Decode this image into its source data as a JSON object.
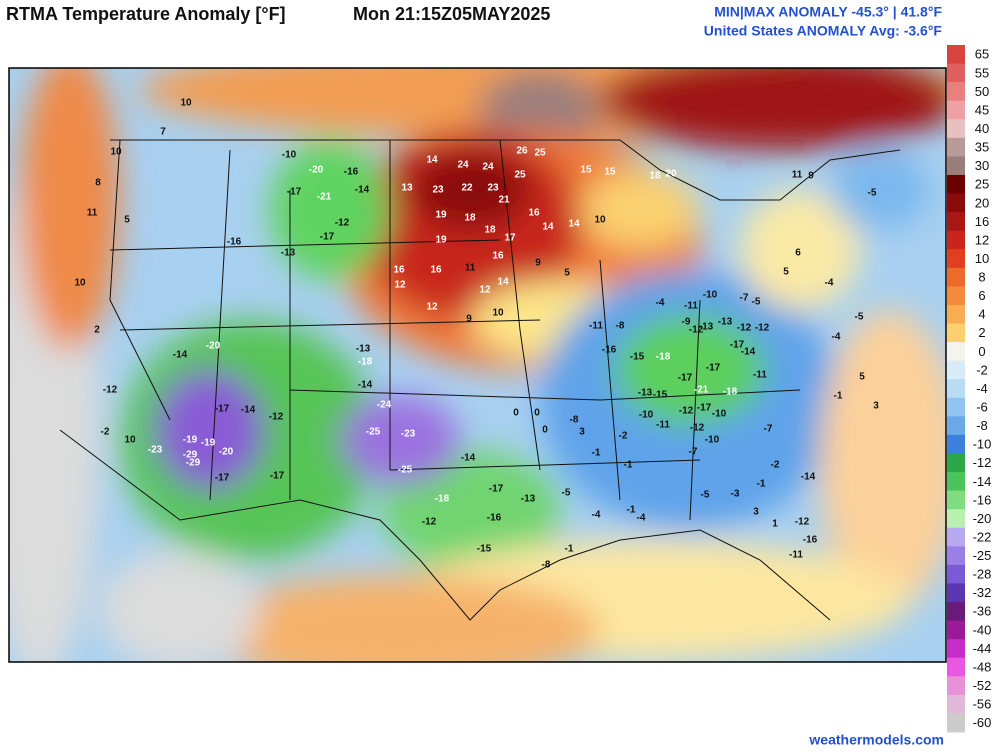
{
  "header": {
    "title": "RTMA Temperature Anomaly [°F]",
    "valid": "Mon 21:15Z05MAY2025",
    "minmax": "MIN|MAX ANOMALY -45.3° | 41.8°F",
    "average": "United States ANOMALY Avg: -3.6°F"
  },
  "stations": [
    10,
    7,
    10,
    8,
    11,
    5,
    10,
    2,
    -12,
    -2,
    10,
    -23,
    -19,
    -29,
    14,
    24,
    24,
    26,
    25,
    25,
    13,
    23,
    22,
    23,
    21,
    19,
    18,
    18,
    17,
    16,
    14,
    14,
    10,
    19,
    16,
    16,
    16,
    11,
    14,
    12,
    12,
    12,
    9,
    10,
    9,
    5,
    15,
    15,
    18,
    20,
    -10,
    -20,
    -16,
    -14,
    -17,
    -21,
    -16,
    -13,
    -17,
    -12,
    -20,
    -14,
    -17,
    -14,
    -12,
    -19,
    -20,
    -29,
    -17,
    -17,
    -13,
    -18,
    -25,
    -23,
    -24,
    -25,
    -14,
    -18,
    -17,
    -16,
    -12,
    -15,
    -13,
    -14,
    -16,
    -15,
    -18,
    -17,
    -21,
    -17,
    -18,
    -17,
    -14,
    -11,
    -13,
    -15,
    -10,
    -12,
    -17,
    -10,
    -9,
    -12,
    -13,
    -13,
    -12,
    -12,
    -10,
    -4,
    -11,
    -8,
    -11,
    -7,
    -5,
    -8,
    -2,
    -10,
    -11,
    -12,
    -7,
    -1,
    3,
    -4,
    11,
    9,
    6,
    5,
    -4,
    -5,
    5,
    -5,
    0,
    0,
    0,
    3,
    -1,
    -1,
    -1,
    -7,
    -3,
    -1,
    -2,
    -14,
    -16,
    -12,
    -11,
    1,
    3,
    -5,
    -4,
    -5,
    -4,
    -1,
    -8
  ],
  "colorbar": {
    "labels": [
      65,
      55,
      50,
      45,
      40,
      35,
      30,
      25,
      20,
      16,
      12,
      10,
      8,
      6,
      4,
      2,
      0,
      -2,
      -4,
      -6,
      -8,
      -10,
      -12,
      -14,
      -16,
      -20,
      -22,
      -25,
      -28,
      -32,
      -36,
      -40,
      -44,
      -48,
      -52,
      -56,
      -60
    ],
    "colors": [
      "#d9443e",
      "#e06060",
      "#e88080",
      "#f0a0a0",
      "#e8c0c0",
      "#b89a98",
      "#9a7e7c",
      "#6b0000",
      "#8b0a0a",
      "#a81616",
      "#c8261b",
      "#e0401f",
      "#ee6a2a",
      "#f48a3a",
      "#f8ad50",
      "#fbd070",
      "#f4f4ee",
      "#d8ecf8",
      "#b8dcf4",
      "#90c4ee",
      "#6aa8e8",
      "#3a80dc",
      "#2aa84a",
      "#4cc45c",
      "#80dc80",
      "#b8f0b0",
      "#b8a8f0",
      "#9a80e6",
      "#7a5ad6",
      "#5a36b0",
      "#6a1a7a",
      "#9a1a9a",
      "#c82cc8",
      "#e858e0",
      "#e890d8",
      "#e0b8d8",
      "#cccccc"
    ]
  },
  "footer": "weathermodels.com"
}
